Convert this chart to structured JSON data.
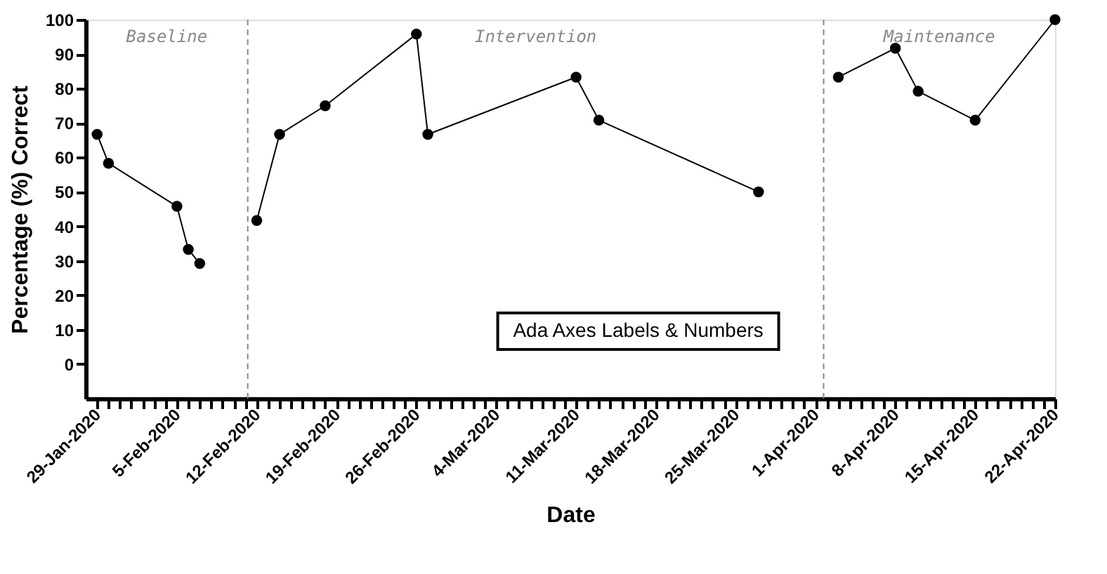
{
  "chart_data": {
    "type": "line",
    "xlabel": "Date",
    "ylabel": "Percentage (%) Correct",
    "xlim": [
      "2020-01-28",
      "2020-04-22"
    ],
    "ylim": [
      -10,
      100
    ],
    "xticks": [
      {
        "value": "2020-01-29",
        "label": "29-Jan-2020"
      },
      {
        "value": "2020-01-30",
        "label": null
      },
      {
        "value": "2020-01-31",
        "label": null
      },
      {
        "value": "2020-02-01",
        "label": null
      },
      {
        "value": "2020-02-02",
        "label": null
      },
      {
        "value": "2020-02-03",
        "label": null
      },
      {
        "value": "2020-02-04",
        "label": null
      },
      {
        "value": "2020-02-05",
        "label": "5-Feb-2020"
      },
      {
        "value": "2020-02-06",
        "label": null
      },
      {
        "value": "2020-02-07",
        "label": null
      },
      {
        "value": "2020-02-08",
        "label": null
      },
      {
        "value": "2020-02-09",
        "label": null
      },
      {
        "value": "2020-02-10",
        "label": null
      },
      {
        "value": "2020-02-11",
        "label": null
      },
      {
        "value": "2020-02-12",
        "label": "12-Feb-2020"
      },
      {
        "value": "2020-02-13",
        "label": null
      },
      {
        "value": "2020-02-14",
        "label": null
      },
      {
        "value": "2020-02-15",
        "label": null
      },
      {
        "value": "2020-02-16",
        "label": null
      },
      {
        "value": "2020-02-17",
        "label": null
      },
      {
        "value": "2020-02-18",
        "label": null
      },
      {
        "value": "2020-02-19",
        "label": "19-Feb-2020"
      },
      {
        "value": "2020-02-20",
        "label": null
      },
      {
        "value": "2020-02-21",
        "label": null
      },
      {
        "value": "2020-02-22",
        "label": null
      },
      {
        "value": "2020-02-23",
        "label": null
      },
      {
        "value": "2020-02-24",
        "label": null
      },
      {
        "value": "2020-02-25",
        "label": null
      },
      {
        "value": "2020-02-26",
        "label": "26-Feb-2020"
      },
      {
        "value": "2020-02-27",
        "label": null
      },
      {
        "value": "2020-02-28",
        "label": null
      },
      {
        "value": "2020-02-29",
        "label": null
      },
      {
        "value": "2020-03-01",
        "label": null
      },
      {
        "value": "2020-03-02",
        "label": null
      },
      {
        "value": "2020-03-03",
        "label": null
      },
      {
        "value": "2020-03-04",
        "label": "4-Mar-2020"
      },
      {
        "value": "2020-03-05",
        "label": null
      },
      {
        "value": "2020-03-06",
        "label": null
      },
      {
        "value": "2020-03-07",
        "label": null
      },
      {
        "value": "2020-03-08",
        "label": null
      },
      {
        "value": "2020-03-09",
        "label": null
      },
      {
        "value": "2020-03-10",
        "label": null
      },
      {
        "value": "2020-03-11",
        "label": "11-Mar-2020"
      },
      {
        "value": "2020-03-12",
        "label": null
      },
      {
        "value": "2020-03-13",
        "label": null
      },
      {
        "value": "2020-03-14",
        "label": null
      },
      {
        "value": "2020-03-15",
        "label": null
      },
      {
        "value": "2020-03-16",
        "label": null
      },
      {
        "value": "2020-03-17",
        "label": null
      },
      {
        "value": "2020-03-18",
        "label": "18-Mar-2020"
      },
      {
        "value": "2020-03-19",
        "label": null
      },
      {
        "value": "2020-03-20",
        "label": null
      },
      {
        "value": "2020-03-21",
        "label": null
      },
      {
        "value": "2020-03-22",
        "label": null
      },
      {
        "value": "2020-03-23",
        "label": null
      },
      {
        "value": "2020-03-24",
        "label": null
      },
      {
        "value": "2020-03-25",
        "label": "25-Mar-2020"
      },
      {
        "value": "2020-03-26",
        "label": null
      },
      {
        "value": "2020-03-27",
        "label": null
      },
      {
        "value": "2020-03-28",
        "label": null
      },
      {
        "value": "2020-03-29",
        "label": null
      },
      {
        "value": "2020-03-30",
        "label": null
      },
      {
        "value": "2020-03-31",
        "label": null
      },
      {
        "value": "2020-04-01",
        "label": "1-Apr-2020"
      },
      {
        "value": "2020-04-02",
        "label": null
      },
      {
        "value": "2020-04-03",
        "label": null
      },
      {
        "value": "2020-04-04",
        "label": null
      },
      {
        "value": "2020-04-05",
        "label": null
      },
      {
        "value": "2020-04-06",
        "label": null
      },
      {
        "value": "2020-04-07",
        "label": null
      },
      {
        "value": "2020-04-08",
        "label": "8-Apr-2020"
      },
      {
        "value": "2020-04-09",
        "label": null
      },
      {
        "value": "2020-04-10",
        "label": null
      },
      {
        "value": "2020-04-11",
        "label": null
      },
      {
        "value": "2020-04-12",
        "label": null
      },
      {
        "value": "2020-04-13",
        "label": null
      },
      {
        "value": "2020-04-14",
        "label": null
      },
      {
        "value": "2020-04-15",
        "label": "15-Apr-2020"
      },
      {
        "value": "2020-04-16",
        "label": null
      },
      {
        "value": "2020-04-17",
        "label": null
      },
      {
        "value": "2020-04-18",
        "label": null
      },
      {
        "value": "2020-04-19",
        "label": null
      },
      {
        "value": "2020-04-20",
        "label": null
      },
      {
        "value": "2020-04-21",
        "label": null
      },
      {
        "value": "2020-04-22",
        "label": "22-Apr-2020"
      }
    ],
    "yticks": [
      0,
      10,
      20,
      30,
      40,
      50,
      60,
      70,
      80,
      90,
      100
    ],
    "marker": "circle",
    "line_style": "solid",
    "grid": false,
    "series": [
      {
        "color": "#000000",
        "x": [
          "2020-01-29",
          "2020-01-30",
          "2020-02-05",
          "2020-02-06",
          "2020-02-07"
        ],
        "values": [
          66.7,
          58.3,
          45.8,
          33.3,
          29.2
        ]
      },
      {
        "color": "#000000",
        "x": [
          "2020-02-12",
          "2020-02-14",
          "2020-02-18",
          "2020-02-26",
          "2020-02-27",
          "2020-03-11",
          "2020-03-13",
          "2020-03-27"
        ],
        "values": [
          41.7,
          66.7,
          75,
          95.8,
          66.7,
          83.3,
          70.8,
          50
        ]
      },
      {
        "color": "#000000",
        "x": [
          "2020-04-03",
          "2020-04-08",
          "2020-04-10",
          "2020-04-15",
          "2020-04-22"
        ],
        "values": [
          83.3,
          91.7,
          79.2,
          70.8,
          100
        ]
      }
    ],
    "ref_lines": [
      {
        "axis": "x",
        "value": "2020-02-11T05:00",
        "label": null,
        "color": "#888888",
        "line_style": "dashed"
      },
      {
        "axis": "x",
        "value": "2020-04-01T17:00",
        "label": null,
        "color": "#888888",
        "line_style": "dashed"
      }
    ],
    "annotations": [
      "Baseline",
      "Intervention",
      "Maintenance",
      "Ada Axes Labels & Numbers"
    ]
  }
}
